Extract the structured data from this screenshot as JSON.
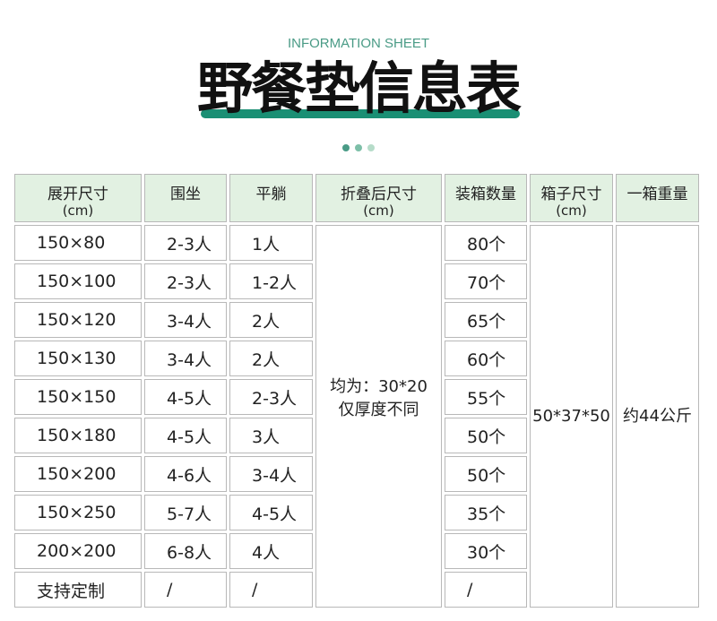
{
  "header": {
    "subtitle": "INFORMATION SHEET",
    "title": "野餐垫信息表",
    "accent": "#1a8f74",
    "dots": [
      "#4a9b86",
      "#7dbfa8",
      "#b6dcc9"
    ]
  },
  "table": {
    "columns": [
      {
        "label": "展开尺寸",
        "unit": "(cm)"
      },
      {
        "label": "围坐"
      },
      {
        "label": "平躺"
      },
      {
        "label": "折叠后尺寸",
        "unit": "(cm)"
      },
      {
        "label": "装箱数量"
      },
      {
        "label": "箱子尺寸",
        "unit": "(cm)"
      },
      {
        "label": "一箱重量"
      }
    ],
    "rows": [
      {
        "size": "150×80",
        "sit": "2-3人",
        "lie": "1人",
        "qty": "80个"
      },
      {
        "size": "150×100",
        "sit": "2-3人",
        "lie": "1-2人",
        "qty": "70个"
      },
      {
        "size": "150×120",
        "sit": "3-4人",
        "lie": "2人",
        "qty": "65个"
      },
      {
        "size": "150×130",
        "sit": "3-4人",
        "lie": "2人",
        "qty": "60个"
      },
      {
        "size": "150×150",
        "sit": "4-5人",
        "lie": "2-3人",
        "qty": "55个"
      },
      {
        "size": "150×180",
        "sit": "4-5人",
        "lie": "3人",
        "qty": "50个"
      },
      {
        "size": "150×200",
        "sit": "4-6人",
        "lie": "3-4人",
        "qty": "50个"
      },
      {
        "size": "150×250",
        "sit": "5-7人",
        "lie": "4-5人",
        "qty": "35个"
      },
      {
        "size": "200×200",
        "sit": "6-8人",
        "lie": "4人",
        "qty": "30个"
      },
      {
        "size": "支持定制",
        "sit": "/",
        "lie": "/",
        "qty": "/"
      }
    ],
    "folded_line1": "均为：30*20",
    "folded_line2": "仅厚度不同",
    "box_size": "50*37*50",
    "box_weight": "约44公斤"
  }
}
